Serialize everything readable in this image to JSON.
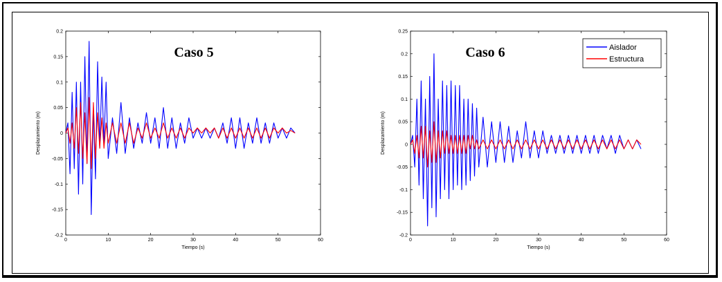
{
  "chart_data": [
    {
      "type": "line",
      "annotation": "Caso 5",
      "xlabel": "Tiempo (s)",
      "ylabel": "Desplazamiento (m)",
      "xlim": [
        0,
        60
      ],
      "ylim": [
        -0.2,
        0.2
      ],
      "xticks": [
        0,
        10,
        20,
        30,
        40,
        50,
        60
      ],
      "yticks": [
        -0.2,
        -0.15,
        -0.1,
        -0.05,
        0,
        0.05,
        0.1,
        0.15,
        0.2
      ],
      "series": [
        {
          "color": "#0000ff",
          "x": [
            0,
            0.5,
            1,
            1.5,
            2,
            2.5,
            3,
            3.5,
            4,
            4.5,
            5,
            5.5,
            6,
            6.5,
            7,
            7.5,
            8,
            8.5,
            9,
            9.5,
            10,
            11,
            12,
            13,
            14,
            15,
            16,
            17,
            18,
            19,
            20,
            21,
            22,
            23,
            24,
            25,
            26,
            27,
            28,
            29,
            30,
            31,
            32,
            33,
            34,
            35,
            36,
            37,
            38,
            39,
            40,
            41,
            42,
            43,
            44,
            45,
            46,
            47,
            48,
            49,
            50,
            51,
            52,
            53,
            54
          ],
          "y": [
            0,
            0.02,
            -0.08,
            0.08,
            -0.07,
            0.1,
            -0.12,
            0.1,
            -0.1,
            0.15,
            -0.06,
            0.18,
            -0.16,
            0.05,
            -0.09,
            0.14,
            -0.03,
            0.11,
            -0.02,
            0.1,
            -0.05,
            0.03,
            -0.04,
            0.06,
            -0.04,
            0.03,
            -0.03,
            0.02,
            -0.02,
            0.04,
            -0.02,
            0.03,
            -0.03,
            0.05,
            -0.03,
            0.03,
            -0.03,
            0.02,
            -0.02,
            0.03,
            -0.01,
            0.01,
            -0.01,
            0.01,
            -0.01,
            0.01,
            -0.01,
            0.02,
            -0.02,
            0.03,
            -0.03,
            0.03,
            -0.03,
            0.02,
            -0.02,
            0.03,
            -0.02,
            0.02,
            -0.02,
            0.02,
            -0.01,
            0.01,
            -0.01,
            0.01,
            0
          ]
        },
        {
          "color": "#ff0000",
          "x": [
            0,
            0.5,
            1,
            1.5,
            2,
            2.5,
            3,
            3.5,
            4,
            4.5,
            5,
            5.5,
            6,
            6.5,
            7,
            7.5,
            8,
            8.5,
            9,
            9.5,
            10,
            11,
            12,
            13,
            14,
            15,
            16,
            17,
            18,
            19,
            20,
            21,
            22,
            23,
            24,
            25,
            26,
            27,
            28,
            29,
            30,
            31,
            32,
            33,
            34,
            35,
            36,
            37,
            38,
            39,
            40,
            41,
            42,
            43,
            44,
            45,
            46,
            47,
            48,
            49,
            50,
            51,
            52,
            53,
            54
          ],
          "y": [
            0,
            0.01,
            -0.02,
            0.02,
            -0.03,
            0.05,
            -0.04,
            0.06,
            -0.05,
            0.04,
            -0.06,
            0.07,
            -0.07,
            0.06,
            -0.05,
            0.04,
            -0.03,
            0.03,
            -0.03,
            0.02,
            -0.02,
            0.02,
            -0.02,
            0.02,
            -0.02,
            0.02,
            -0.02,
            0.01,
            -0.01,
            0.02,
            -0.01,
            0.01,
            -0.01,
            0.02,
            -0.01,
            0.01,
            -0.01,
            0.01,
            -0.01,
            0.01,
            0,
            0.01,
            0,
            0.01,
            0,
            0.01,
            -0.01,
            0.01,
            -0.01,
            0.01,
            -0.01,
            0.01,
            -0.01,
            0.01,
            -0.01,
            0.01,
            -0.01,
            0.01,
            -0.01,
            0.01,
            0,
            0.01,
            0,
            0.005,
            0
          ]
        }
      ]
    },
    {
      "type": "line",
      "annotation": "Caso 6",
      "xlabel": "Tiempo (s)",
      "ylabel": "Desplazamiento (m)",
      "xlim": [
        0,
        60
      ],
      "ylim": [
        -0.2,
        0.25
      ],
      "xticks": [
        0,
        10,
        20,
        30,
        40,
        50,
        60
      ],
      "yticks": [
        -0.2,
        -0.15,
        -0.1,
        -0.05,
        0,
        0.05,
        0.1,
        0.15,
        0.2,
        0.25
      ],
      "legend": {
        "position": "top-right",
        "entries": [
          {
            "name": "Aislador",
            "color": "#0000ff"
          },
          {
            "name": "Estructura",
            "color": "#ff0000"
          }
        ]
      },
      "series": [
        {
          "name": "Aislador",
          "color": "#0000ff",
          "x": [
            0,
            0.5,
            1,
            1.5,
            2,
            2.5,
            3,
            3.5,
            4,
            4.5,
            5,
            5.5,
            6,
            6.5,
            7,
            7.5,
            8,
            8.5,
            9,
            9.5,
            10,
            10.5,
            11,
            11.5,
            12,
            12.5,
            13,
            13.5,
            14,
            14.5,
            15,
            15.5,
            16,
            17,
            18,
            19,
            20,
            21,
            22,
            23,
            24,
            25,
            26,
            27,
            28,
            29,
            30,
            31,
            32,
            33,
            34,
            35,
            36,
            37,
            38,
            39,
            40,
            41,
            42,
            43,
            44,
            45,
            46,
            47,
            48,
            49,
            50,
            51,
            52,
            53,
            54
          ],
          "y": [
            0,
            0.02,
            -0.05,
            0.1,
            -0.09,
            0.14,
            -0.12,
            0.1,
            -0.18,
            0.15,
            -0.14,
            0.2,
            -0.16,
            0.1,
            -0.12,
            0.14,
            -0.1,
            0.13,
            -0.12,
            0.14,
            -0.1,
            0.13,
            -0.09,
            0.13,
            -0.1,
            0.1,
            -0.09,
            0.1,
            -0.08,
            0.09,
            -0.07,
            0.08,
            -0.05,
            0.06,
            -0.05,
            0.05,
            -0.04,
            0.05,
            -0.04,
            0.04,
            -0.04,
            0.03,
            -0.03,
            0.05,
            -0.03,
            0.03,
            -0.03,
            0.03,
            -0.02,
            0.02,
            -0.02,
            0.02,
            -0.02,
            0.02,
            -0.02,
            0.02,
            -0.02,
            0.02,
            -0.02,
            0.02,
            -0.02,
            0.02,
            -0.01,
            0.02,
            -0.02,
            0.02,
            -0.01,
            0.01,
            -0.01,
            0.01,
            -0.01
          ]
        },
        {
          "name": "Estructura",
          "color": "#ff0000",
          "x": [
            0,
            0.5,
            1,
            1.5,
            2,
            2.5,
            3,
            3.5,
            4,
            4.5,
            5,
            5.5,
            6,
            6.5,
            7,
            7.5,
            8,
            8.5,
            9,
            9.5,
            10,
            10.5,
            11,
            11.5,
            12,
            12.5,
            13,
            13.5,
            14,
            14.5,
            15,
            15.5,
            16,
            17,
            18,
            19,
            20,
            21,
            22,
            23,
            24,
            25,
            26,
            27,
            28,
            29,
            30,
            31,
            32,
            33,
            34,
            35,
            36,
            37,
            38,
            39,
            40,
            41,
            42,
            43,
            44,
            45,
            46,
            47,
            48,
            49,
            50,
            51,
            52,
            53,
            54
          ],
          "y": [
            0,
            0.01,
            -0.02,
            0.02,
            -0.03,
            0.04,
            -0.03,
            0.04,
            -0.05,
            0.03,
            -0.04,
            0.05,
            -0.04,
            0.03,
            -0.03,
            0.03,
            -0.02,
            0.03,
            -0.02,
            0.02,
            -0.02,
            0.02,
            -0.02,
            0.02,
            -0.02,
            0.02,
            -0.02,
            0.02,
            -0.01,
            0.02,
            -0.01,
            0.01,
            -0.01,
            0.01,
            -0.01,
            0.01,
            -0.01,
            0.01,
            -0.01,
            0.01,
            -0.01,
            0.01,
            -0.01,
            0.01,
            -0.01,
            0.01,
            -0.01,
            0.01,
            -0.01,
            0.01,
            -0.01,
            0.01,
            -0.01,
            0.01,
            -0.01,
            0.01,
            -0.01,
            0.01,
            -0.01,
            0.01,
            -0.01,
            0.01,
            -0.01,
            0.01,
            -0.01,
            0.01,
            -0.01,
            0.01,
            -0.01,
            0.01,
            0
          ]
        }
      ]
    }
  ]
}
